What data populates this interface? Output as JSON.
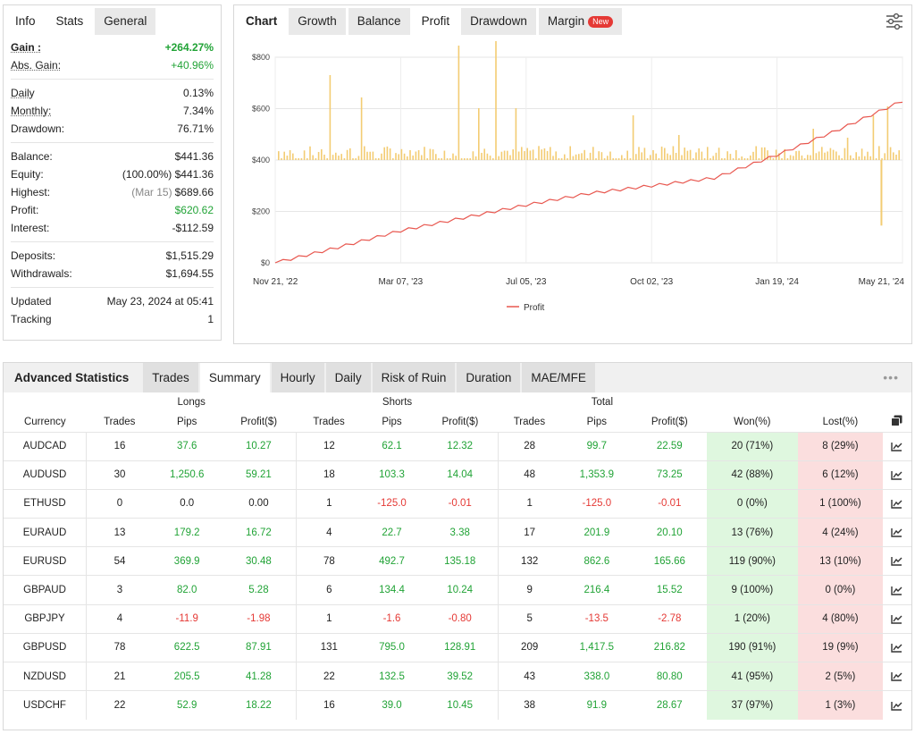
{
  "stats": {
    "tabs": [
      "Info",
      "Stats",
      "General"
    ],
    "active_tab": "Stats",
    "rows_a": [
      {
        "label": "Gain :",
        "value": "+264.27%"
      },
      {
        "label": "Abs. Gain:",
        "value": "+40.96%"
      }
    ],
    "rows_b": [
      {
        "label": "Daily",
        "value": "0.13%"
      },
      {
        "label": "Monthly:",
        "value": "7.34%"
      },
      {
        "label": "Drawdown:",
        "value": "76.71%"
      }
    ],
    "rows_c": [
      {
        "label": "Balance:",
        "value": "$441.36",
        "note": ""
      },
      {
        "label": "Equity:",
        "value": "(100.00%) $441.36",
        "note": ""
      },
      {
        "label": "Highest:",
        "value": "$689.66",
        "note": "(Mar 15)"
      },
      {
        "label": "Profit:",
        "value": "$620.62",
        "note": ""
      },
      {
        "label": "Interest:",
        "value": "-$112.59",
        "note": ""
      }
    ],
    "rows_d": [
      {
        "label": "Deposits:",
        "value": "$1,515.29"
      },
      {
        "label": "Withdrawals:",
        "value": "$1,694.55"
      }
    ],
    "rows_e": [
      {
        "label": "Updated",
        "value": "May 23, 2024 at 05:41"
      },
      {
        "label": "Tracking",
        "value": "1"
      }
    ]
  },
  "chart_panel": {
    "tabs": [
      "Chart",
      "Growth",
      "Balance",
      "Profit",
      "Drawdown",
      "Margin"
    ],
    "active_tab": "Profit",
    "new_badge": "New",
    "settings_icon": "sliders-icon"
  },
  "chart_data": {
    "type": "line",
    "x_tick_labels": [
      "Nov 21, '22",
      "Mar 07, '23",
      "Jul 05, '23",
      "Oct 02, '23",
      "Jan 19, '24",
      "May 21, '24"
    ],
    "y_tick_labels": [
      "$0",
      "$200",
      "$400",
      "$600",
      "$800"
    ],
    "ylim": [
      0,
      800
    ],
    "legend": "Profit",
    "legend_position": "bottom-center",
    "line_color": "#e8574f",
    "bar_color": "#f3cc73",
    "series": [
      {
        "name": "Profit",
        "x_index": [
          0,
          10,
          20,
          30,
          40,
          50,
          60,
          70,
          80,
          90,
          100
        ],
        "values": [
          0,
          60,
          125,
          175,
          225,
          270,
          300,
          330,
          420,
          520,
          630
        ]
      }
    ],
    "daily_bar_baseline": 400,
    "daily_bars_note": "daily profit bars drawn around the $400 line"
  },
  "advanced": {
    "title": "Advanced Statistics",
    "tabs": [
      "Trades",
      "Summary",
      "Hourly",
      "Daily",
      "Risk of Ruin",
      "Duration",
      "MAE/MFE"
    ],
    "active_tab": "Summary",
    "more_icon": "ellipsis-icon",
    "groups": {
      "longs": "Longs",
      "shorts": "Shorts",
      "total": "Total"
    },
    "columns": [
      "Currency",
      "Trades",
      "Pips",
      "Profit($)",
      "Trades",
      "Pips",
      "Profit($)",
      "Trades",
      "Pips",
      "Profit($)",
      "Won(%)",
      "Lost(%)"
    ],
    "rows": [
      [
        "AUDCAD",
        "16",
        "37.6",
        "10.27",
        "12",
        "62.1",
        "12.32",
        "28",
        "99.7",
        "22.59",
        "20 (71%)",
        "8 (29%)"
      ],
      [
        "AUDUSD",
        "30",
        "1,250.6",
        "59.21",
        "18",
        "103.3",
        "14.04",
        "48",
        "1,353.9",
        "73.25",
        "42 (88%)",
        "6 (12%)"
      ],
      [
        "ETHUSD",
        "0",
        "0.0",
        "0.00",
        "1",
        "-125.0",
        "-0.01",
        "1",
        "-125.0",
        "-0.01",
        "0 (0%)",
        "1 (100%)"
      ],
      [
        "EURAUD",
        "13",
        "179.2",
        "16.72",
        "4",
        "22.7",
        "3.38",
        "17",
        "201.9",
        "20.10",
        "13 (76%)",
        "4 (24%)"
      ],
      [
        "EURUSD",
        "54",
        "369.9",
        "30.48",
        "78",
        "492.7",
        "135.18",
        "132",
        "862.6",
        "165.66",
        "119 (90%)",
        "13 (10%)"
      ],
      [
        "GBPAUD",
        "3",
        "82.0",
        "5.28",
        "6",
        "134.4",
        "10.24",
        "9",
        "216.4",
        "15.52",
        "9 (100%)",
        "0 (0%)"
      ],
      [
        "GBPJPY",
        "4",
        "-11.9",
        "-1.98",
        "1",
        "-1.6",
        "-0.80",
        "5",
        "-13.5",
        "-2.78",
        "1 (20%)",
        "4 (80%)"
      ],
      [
        "GBPUSD",
        "78",
        "622.5",
        "87.91",
        "131",
        "795.0",
        "128.91",
        "209",
        "1,417.5",
        "216.82",
        "190 (91%)",
        "19 (9%)"
      ],
      [
        "NZDUSD",
        "21",
        "205.5",
        "41.28",
        "22",
        "132.5",
        "39.52",
        "43",
        "338.0",
        "80.80",
        "41 (95%)",
        "2 (5%)"
      ],
      [
        "USDCHF",
        "22",
        "52.9",
        "18.22",
        "16",
        "39.0",
        "10.45",
        "38",
        "91.9",
        "28.67",
        "37 (97%)",
        "1 (3%)"
      ]
    ]
  }
}
